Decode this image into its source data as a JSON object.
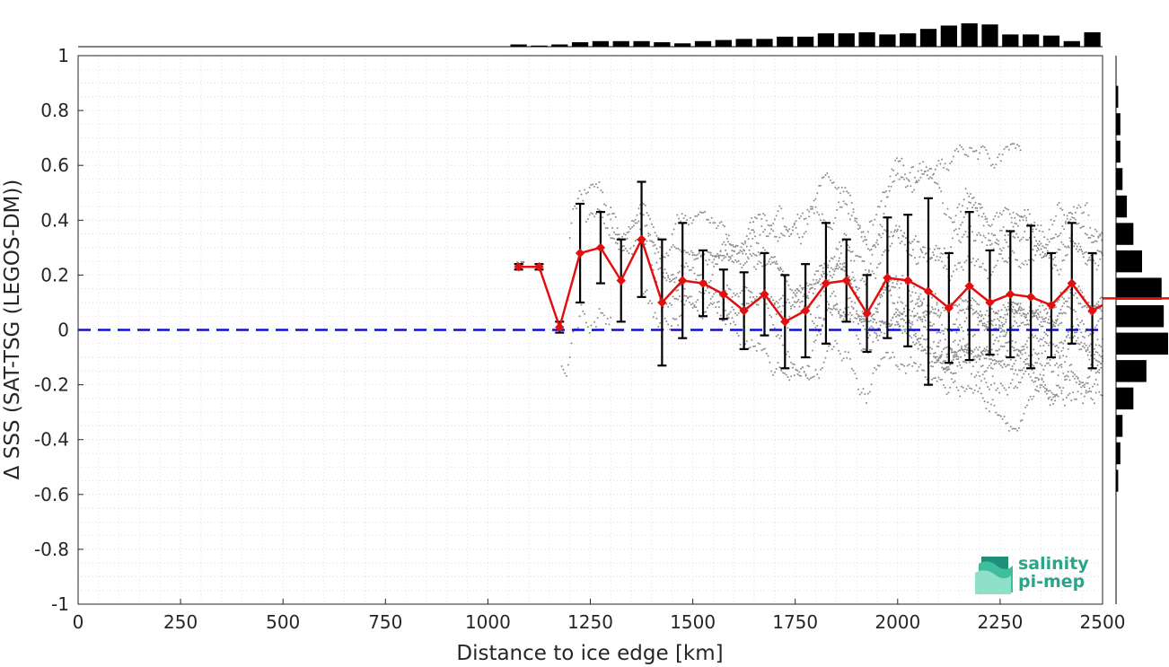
{
  "chart_data": {
    "type": "scatter",
    "xlabel": "Distance to ice edge [km]",
    "ylabel": "Δ SSS (SAT-TSG (LEGOS-DM))",
    "xlim": [
      0,
      2500
    ],
    "ylim": [
      -1,
      1
    ],
    "xticks": [
      0,
      250,
      500,
      750,
      1000,
      1250,
      1500,
      1750,
      2000,
      2250,
      2500
    ],
    "yticks": [
      -1,
      -0.8,
      -0.6,
      -0.4,
      -0.2,
      0,
      0.2,
      0.4,
      0.6,
      0.8,
      1
    ],
    "xtick_labels": [
      "0",
      "250",
      "500",
      "750",
      "1000",
      "1250",
      "1500",
      "1750",
      "2000",
      "2250",
      "2500"
    ],
    "ytick_labels": [
      "-1",
      "-0.8",
      "-0.6",
      "-0.4",
      "-0.2",
      "0",
      "0.2",
      "0.4",
      "0.6",
      "0.8",
      "1"
    ],
    "grid": true,
    "reference_line": {
      "y": 0,
      "color": "#1010d0",
      "style": "dashed"
    },
    "binned_mean": {
      "color": "#e01010",
      "x": [
        1075,
        1125,
        1175,
        1225,
        1275,
        1325,
        1375,
        1425,
        1475,
        1525,
        1575,
        1625,
        1675,
        1725,
        1775,
        1825,
        1875,
        1925,
        1975,
        2025,
        2075,
        2125,
        2175,
        2225,
        2275,
        2325,
        2375,
        2425,
        2475,
        2500
      ],
      "y": [
        0.23,
        0.23,
        0.01,
        0.28,
        0.3,
        0.18,
        0.33,
        0.1,
        0.18,
        0.17,
        0.13,
        0.07,
        0.13,
        0.03,
        0.07,
        0.17,
        0.18,
        0.06,
        0.19,
        0.18,
        0.14,
        0.08,
        0.16,
        0.1,
        0.13,
        0.12,
        0.09,
        0.17,
        0.07,
        0.09
      ],
      "std": [
        0.01,
        0.01,
        0.02,
        0.18,
        0.13,
        0.15,
        0.21,
        0.23,
        0.21,
        0.12,
        0.09,
        0.14,
        0.15,
        0.17,
        0.17,
        0.22,
        0.15,
        0.14,
        0.22,
        0.24,
        0.34,
        0.2,
        0.27,
        0.19,
        0.23,
        0.26,
        0.19,
        0.22,
        0.21,
        null
      ]
    },
    "raw_points_color": "#8c8c8c",
    "top_histogram": {
      "x": [
        1075,
        1125,
        1175,
        1225,
        1275,
        1325,
        1375,
        1425,
        1475,
        1525,
        1575,
        1625,
        1675,
        1725,
        1775,
        1825,
        1875,
        1925,
        1975,
        2025,
        2075,
        2125,
        2175,
        2225,
        2275,
        2325,
        2375,
        2425,
        2475
      ],
      "counts": [
        2,
        1,
        2,
        4,
        5,
        5,
        5,
        4,
        3,
        5,
        6,
        7,
        7,
        9,
        9,
        12,
        12,
        13,
        11,
        12,
        16,
        19,
        21,
        20,
        11,
        11,
        10,
        5,
        13
      ]
    },
    "right_histogram": {
      "y": [
        -0.55,
        -0.45,
        -0.35,
        -0.25,
        -0.15,
        -0.05,
        0.05,
        0.15,
        0.25,
        0.35,
        0.45,
        0.55,
        0.65,
        0.75,
        0.85,
        0.95
      ],
      "counts": [
        1,
        2,
        3,
        8,
        14,
        24,
        22,
        21,
        12,
        8,
        5,
        3,
        2,
        2,
        1,
        0
      ],
      "mean_y": 0.115
    },
    "logo": {
      "line1": "salinity",
      "line2": "pi-mep"
    }
  }
}
